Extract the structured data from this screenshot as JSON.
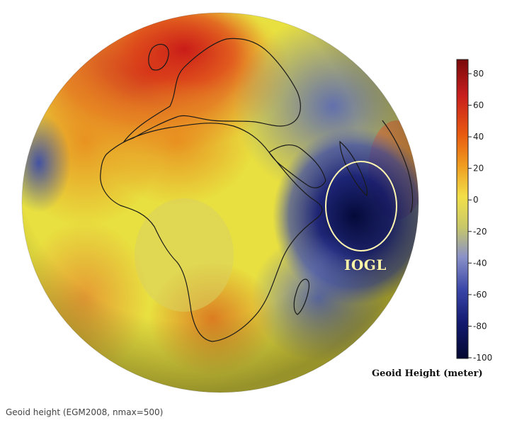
{
  "colorbar": {
    "title": "Geoid Height (meter)",
    "ticks": [
      "80",
      "60",
      "40",
      "20",
      "0",
      "-20",
      "-40",
      "-60",
      "-80",
      "-100"
    ],
    "colors": [
      "#7a0a0a",
      "#c81e1e",
      "#e85a10",
      "#f0a020",
      "#f2e04a",
      "#c8c868",
      "#8a92c8",
      "#3a46a8",
      "#121a70",
      "#040830"
    ]
  },
  "annotation": {
    "label": "IOGL"
  },
  "caption": "Geoid height (EGM2008, nmax=500)"
}
